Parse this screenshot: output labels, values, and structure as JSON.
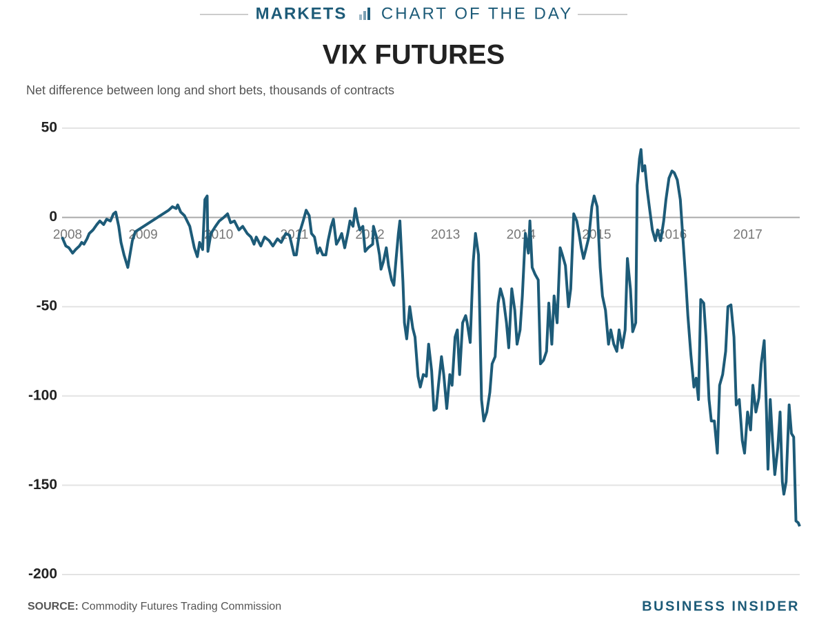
{
  "header": {
    "section": "MARKETS",
    "label": "CHART OF THE DAY"
  },
  "chart_data": {
    "type": "line",
    "title": "VIX FUTURES",
    "subtitle": "Net difference between long and short bets, thousands of contracts",
    "xlim": [
      2008,
      2017.76
    ],
    "xticks": [
      2008,
      2009,
      2010,
      2011,
      2012,
      2013,
      2014,
      2015,
      2016,
      2017
    ],
    "ylim": [
      -200,
      50
    ],
    "yticks": [
      50,
      0,
      -50,
      -100,
      -150,
      -200
    ],
    "grid": true,
    "x": [
      2008.0,
      2008.05,
      2008.09,
      2008.14,
      2008.18,
      2008.23,
      2008.26,
      2008.29,
      2008.33,
      2008.36,
      2008.41,
      2008.46,
      2008.5,
      2008.55,
      2008.59,
      2008.64,
      2008.68,
      2008.71,
      2008.75,
      2008.78,
      2008.82,
      2008.87,
      2008.89,
      2008.93,
      2008.97,
      2009.41,
      2009.46,
      2009.51,
      2009.53,
      2009.57,
      2009.62,
      2009.69,
      2009.75,
      2009.79,
      2009.82,
      2009.86,
      2009.89,
      2009.92,
      2009.93,
      2009.97,
      2010.03,
      2010.08,
      2010.14,
      2010.19,
      2010.23,
      2010.28,
      2010.34,
      2010.39,
      2010.45,
      2010.5,
      2010.54,
      2010.57,
      2010.63,
      2010.68,
      2010.74,
      2010.79,
      2010.85,
      2010.9,
      2010.96,
      2011.01,
      2011.07,
      2011.1,
      2011.14,
      2011.19,
      2011.23,
      2011.27,
      2011.3,
      2011.34,
      2011.38,
      2011.41,
      2011.45,
      2011.49,
      2011.52,
      2011.56,
      2011.59,
      2011.63,
      2011.67,
      2011.7,
      2011.74,
      2011.78,
      2011.81,
      2011.85,
      2011.88,
      2011.91,
      2011.94,
      2011.98,
      2012.01,
      2012.05,
      2012.11,
      2012.12,
      2012.16,
      2012.2,
      2012.22,
      2012.25,
      2012.29,
      2012.32,
      2012.36,
      2012.39,
      2012.42,
      2012.45,
      2012.47,
      2012.51,
      2012.53,
      2012.56,
      2012.6,
      2012.64,
      2012.67,
      2012.71,
      2012.74,
      2012.78,
      2012.82,
      2012.85,
      2012.89,
      2012.92,
      2012.95,
      2012.98,
      2013.02,
      2013.05,
      2013.09,
      2013.13,
      2013.16,
      2013.2,
      2013.23,
      2013.26,
      2013.3,
      2013.34,
      2013.36,
      2013.4,
      2013.44,
      2013.47,
      2013.51,
      2013.55,
      2013.58,
      2013.62,
      2013.66,
      2013.69,
      2013.73,
      2013.77,
      2013.8,
      2013.84,
      2013.88,
      2013.91,
      2013.95,
      2013.99,
      2014.02,
      2014.06,
      2014.09,
      2014.13,
      2014.17,
      2014.19,
      2014.22,
      2014.26,
      2014.3,
      2014.33,
      2014.37,
      2014.41,
      2014.44,
      2014.48,
      2014.51,
      2014.55,
      2014.59,
      2014.62,
      2014.66,
      2014.7,
      2014.73,
      2014.77,
      2014.81,
      2014.84,
      2014.87,
      2014.9,
      2014.93,
      2014.97,
      2015.01,
      2015.04,
      2015.08,
      2015.12,
      2015.15,
      2015.19,
      2015.23,
      2015.26,
      2015.3,
      2015.34,
      2015.37,
      2015.41,
      2015.45,
      2015.48,
      2015.52,
      2015.55,
      2015.59,
      2015.61,
      2015.64,
      2015.66,
      2015.68,
      2015.71,
      2015.74,
      2015.77,
      2015.81,
      2015.85,
      2015.88,
      2015.92,
      2015.96,
      2015.99,
      2016.03,
      2016.07,
      2016.1,
      2016.14,
      2016.18,
      2016.21,
      2016.25,
      2016.28,
      2016.32,
      2016.36,
      2016.39,
      2016.42,
      2016.45,
      2016.49,
      2016.52,
      2016.56,
      2016.59,
      2016.63,
      2016.67,
      2016.7,
      2016.74,
      2016.78,
      2016.81,
      2016.85,
      2016.89,
      2016.92,
      2016.96,
      2017.0,
      2017.03,
      2017.07,
      2017.11,
      2017.14,
      2017.18,
      2017.22,
      2017.25,
      2017.29,
      2017.32,
      2017.34,
      2017.37,
      2017.4,
      2017.43,
      2017.47,
      2017.5,
      2017.53,
      2017.55,
      2017.58,
      2017.62,
      2017.65,
      2017.68,
      2017.71,
      2017.74,
      2017.76
    ],
    "series": [
      {
        "color": "#1d5b78",
        "values": [
          -11,
          -16,
          -17,
          -20,
          -18,
          -16,
          -14,
          -15,
          -12,
          -9,
          -7,
          -4,
          -2,
          -4,
          -1,
          -2,
          2,
          3,
          -5,
          -14,
          -21,
          -28,
          -23,
          -13,
          -8,
          4,
          6,
          5,
          7,
          3,
          1,
          -5,
          -17,
          -22,
          -14,
          -18,
          10,
          12,
          -19,
          -9,
          -5,
          -2,
          0,
          2,
          -3,
          -2,
          -7,
          -5,
          -9,
          -11,
          -15,
          -11,
          -16,
          -11,
          -13,
          -16,
          -12,
          -14,
          -9,
          -10,
          -21,
          -21,
          -9,
          -2,
          4,
          1,
          -9,
          -11,
          -20,
          -17,
          -21,
          -21,
          -13,
          -5,
          -1,
          -15,
          -12,
          -9,
          -17,
          -9,
          -2,
          -5,
          5,
          -2,
          -7,
          -5,
          -19,
          -17,
          -15,
          -5,
          -11,
          -21,
          -29,
          -25,
          -17,
          -27,
          -35,
          -38,
          -23,
          -9,
          -2,
          -36,
          -59,
          -68,
          -50,
          -62,
          -67,
          -89,
          -95,
          -88,
          -89,
          -71,
          -86,
          -108,
          -107,
          -94,
          -78,
          -88,
          -107,
          -88,
          -94,
          -67,
          -63,
          -88,
          -59,
          -55,
          -59,
          -70,
          -25,
          -9,
          -21,
          -102,
          -114,
          -109,
          -98,
          -82,
          -78,
          -48,
          -40,
          -46,
          -59,
          -73,
          -40,
          -52,
          -71,
          -63,
          -44,
          -9,
          -20,
          -2,
          -28,
          -32,
          -35,
          -82,
          -80,
          -75,
          -48,
          -71,
          -44,
          -59,
          -17,
          -21,
          -27,
          -50,
          -40,
          2,
          -2,
          -9,
          -17,
          -23,
          -18,
          -11,
          6,
          12,
          6,
          -28,
          -44,
          -52,
          -71,
          -63,
          -71,
          -75,
          -63,
          -73,
          -63,
          -23,
          -40,
          -64,
          -59,
          18,
          33,
          38,
          26,
          29,
          16,
          6,
          -7,
          -13,
          -7,
          -13,
          -2,
          10,
          22,
          26,
          25,
          21,
          10,
          -9,
          -34,
          -55,
          -77,
          -95,
          -90,
          -102,
          -46,
          -48,
          -67,
          -102,
          -114,
          -114,
          -132,
          -94,
          -88,
          -75,
          -50,
          -49,
          -67,
          -105,
          -102,
          -125,
          -132,
          -109,
          -119,
          -94,
          -109,
          -101,
          -82,
          -69,
          -109,
          -141,
          -102,
          -125,
          -144,
          -129,
          -109,
          -148,
          -155,
          -148,
          -105,
          -121,
          -123,
          -170,
          -171,
          -173
        ]
      }
    ]
  },
  "footer": {
    "source_label": "SOURCE:",
    "source": "Commodity Futures Trading Commission",
    "brand": "BUSINESS INSIDER"
  }
}
